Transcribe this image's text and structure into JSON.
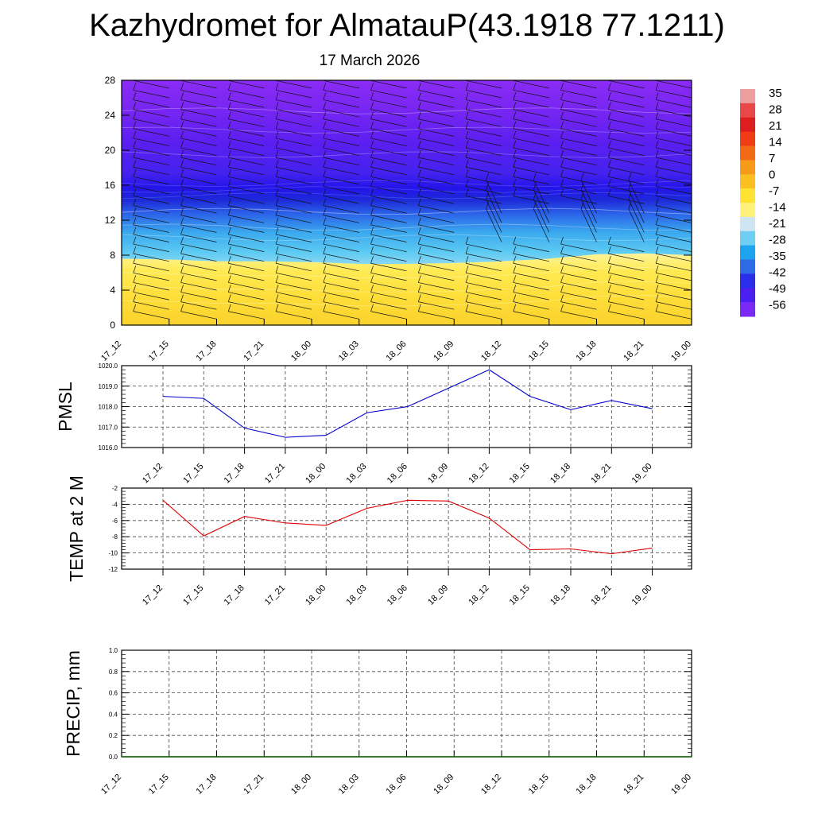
{
  "header": {
    "title": "Kazhydromet for AlmatauP(43.1918 77.1211)",
    "date": "17 March 2026"
  },
  "chart_data": [
    {
      "type": "heatmap",
      "name": "temperature-cross-section",
      "title": "",
      "xlabel": "",
      "ylabel": "",
      "x_ticks": [
        "17_12",
        "17_15",
        "17_18",
        "17_21",
        "18_00",
        "18_03",
        "18_06",
        "18_09",
        "18_12",
        "18_15",
        "18_18",
        "18_21",
        "19_00"
      ],
      "y_ticks": [
        0,
        4,
        8,
        12,
        16,
        20,
        24,
        28
      ],
      "ylim": [
        0,
        28
      ],
      "freezing_level": [
        7.6,
        7.5,
        7.3,
        7.3,
        7.2,
        7.0,
        7.0,
        7.1,
        7.3,
        7.6,
        8.1,
        8.2,
        8.0
      ],
      "colorbar": {
        "labels": [
          "35",
          "28",
          "21",
          "14",
          "7",
          "0",
          "-7",
          "-14",
          "-21",
          "-28",
          "-35",
          "-42",
          "-49",
          "-56"
        ],
        "colors": [
          "#ee9e9e",
          "#e84848",
          "#dc1e1e",
          "#f03c14",
          "#f26a16",
          "#f79a1a",
          "#fbbf22",
          "#ffe232",
          "#fff07a",
          "#cfe6f2",
          "#6fcff2",
          "#1ea4ee",
          "#2e6be6",
          "#2b2ee8",
          "#4a1ff0",
          "#7a2af5"
        ]
      },
      "wind_barbs": "shown at every time step and height level"
    },
    {
      "type": "line",
      "name": "pmsl",
      "ylabel": "PMSL",
      "categories": [
        "17_12",
        "17_15",
        "17_18",
        "17_21",
        "18_00",
        "18_03",
        "18_06",
        "18_09",
        "18_12",
        "18_15",
        "18_18",
        "18_21",
        "19_00"
      ],
      "series": [
        {
          "name": "PMSL",
          "color": "#0000cc",
          "values": [
            1018.5,
            1018.4,
            1016.95,
            1016.5,
            1016.6,
            1017.7,
            1018.0,
            1018.9,
            1019.8,
            1018.5,
            1017.85,
            1018.3,
            1017.9
          ]
        }
      ],
      "ylim": [
        1016.0,
        1020.0
      ],
      "y_ticks": [
        "1016.0",
        "1017.0",
        "1018.0",
        "1019.0",
        "1020.0"
      ],
      "grid": true
    },
    {
      "type": "line",
      "name": "temp-2m",
      "ylabel": "TEMP at 2 M",
      "categories": [
        "17_12",
        "17_15",
        "17_18",
        "17_21",
        "18_00",
        "18_03",
        "18_06",
        "18_09",
        "18_12",
        "18_15",
        "18_18",
        "18_21",
        "19_00"
      ],
      "series": [
        {
          "name": "TEMP at 2 M",
          "color": "#dd0000",
          "values": [
            -3.5,
            -7.9,
            -5.5,
            -6.3,
            -6.6,
            -4.5,
            -3.5,
            -3.6,
            -5.7,
            -9.6,
            -9.5,
            -10.1,
            -9.4
          ]
        }
      ],
      "ylim": [
        -12,
        -2
      ],
      "y_ticks": [
        "-12",
        "-10",
        "-8",
        "-6",
        "-4",
        "-2"
      ],
      "grid": true
    },
    {
      "type": "line",
      "name": "precip",
      "ylabel": "PRECIP, mm",
      "categories": [
        "17_12",
        "17_15",
        "17_18",
        "17_21",
        "18_00",
        "18_03",
        "18_06",
        "18_09",
        "18_12",
        "18_15",
        "18_18",
        "18_21",
        "19_00"
      ],
      "series": [
        {
          "name": "PRECIP",
          "color": "#006400",
          "values": [
            0,
            0,
            0,
            0,
            0,
            0,
            0,
            0,
            0,
            0,
            0,
            0,
            0
          ]
        }
      ],
      "ylim": [
        0.0,
        1.0
      ],
      "y_ticks": [
        "0.0",
        "0.2",
        "0.4",
        "0.6",
        "0.8",
        "1.0"
      ],
      "grid": true
    }
  ]
}
